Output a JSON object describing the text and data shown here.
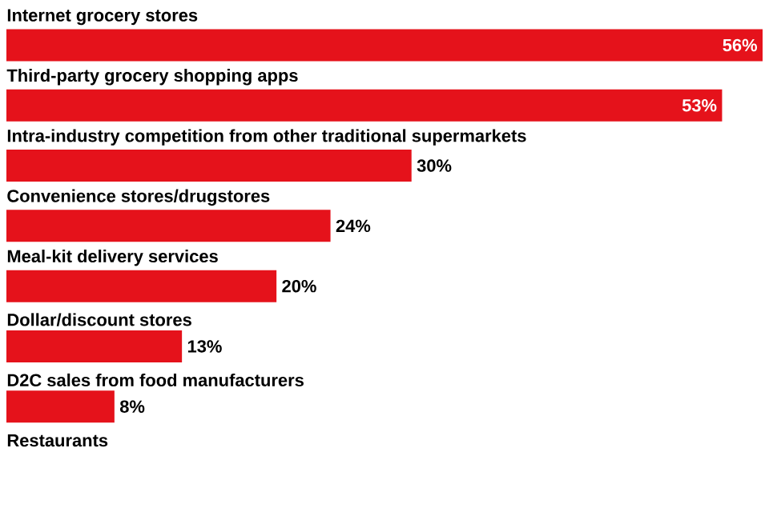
{
  "chart_data": {
    "type": "bar",
    "orientation": "horizontal",
    "color": "#e5121b",
    "categories": [
      "Internet grocery stores",
      "Third-party grocery shopping apps",
      "Intra-industry competition from other traditional supermarkets",
      "Convenience stores/drugstores",
      "Meal-kit delivery services",
      "Dollar/discount stores",
      "D2C sales from food manufacturers",
      "Restaurants"
    ],
    "values": [
      56,
      53,
      30,
      24,
      20,
      13,
      8,
      null
    ],
    "value_labels": [
      "56%",
      "53%",
      "30%",
      "24%",
      "20%",
      "13%",
      "8%",
      null
    ]
  }
}
